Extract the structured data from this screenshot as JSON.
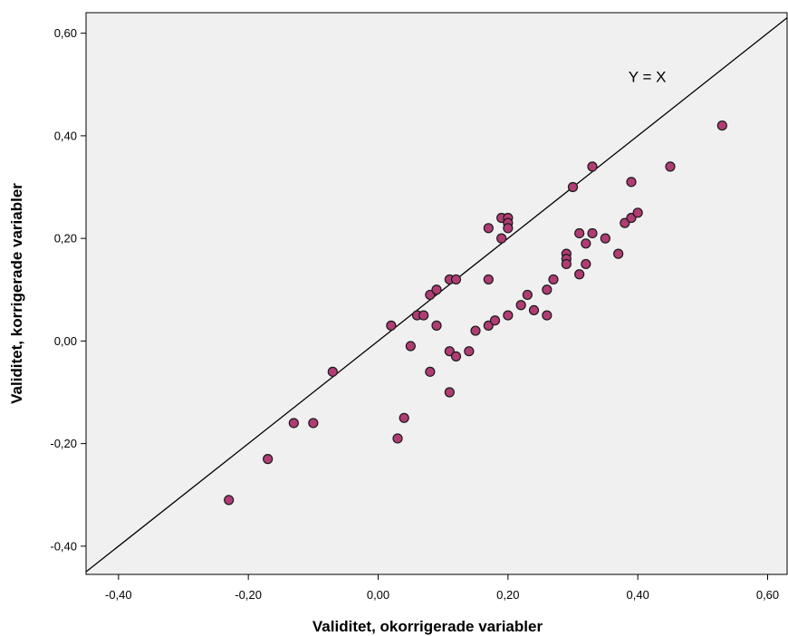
{
  "chart_data": {
    "type": "scatter",
    "title": "",
    "xlabel": "Validitet, okorrigerade variabler",
    "ylabel": "Validitet, korrigerade variabler",
    "xlim": [
      -0.45,
      0.63
    ],
    "ylim": [
      -0.455,
      0.64
    ],
    "xticks": [
      -0.4,
      -0.2,
      0.0,
      0.2,
      0.4,
      0.6
    ],
    "xtick_labels": [
      "-0,40",
      "-0,20",
      "0,00",
      "0,20",
      "0,40",
      "0,60"
    ],
    "yticks": [
      -0.4,
      -0.2,
      0.0,
      0.2,
      0.4,
      0.6
    ],
    "ytick_labels": [
      "-0,40",
      "-0,20",
      "0,00",
      "0,20",
      "0,40",
      "0,60"
    ],
    "grid": false,
    "reference_line": {
      "label": "Y = X",
      "slope": 1,
      "intercept": 0
    },
    "colors": {
      "plot_bg": "#f0f0f0",
      "point_fill": "#b03c74",
      "point_stroke": "#1a1a1a",
      "line": "#000000"
    },
    "points": [
      {
        "x": -0.23,
        "y": -0.31
      },
      {
        "x": -0.17,
        "y": -0.23
      },
      {
        "x": -0.13,
        "y": -0.16
      },
      {
        "x": -0.1,
        "y": -0.16
      },
      {
        "x": -0.07,
        "y": -0.06
      },
      {
        "x": 0.02,
        "y": 0.03
      },
      {
        "x": 0.03,
        "y": -0.19
      },
      {
        "x": 0.04,
        "y": -0.15
      },
      {
        "x": 0.05,
        "y": -0.01
      },
      {
        "x": 0.06,
        "y": 0.05
      },
      {
        "x": 0.07,
        "y": 0.05
      },
      {
        "x": 0.08,
        "y": 0.09
      },
      {
        "x": 0.08,
        "y": -0.06
      },
      {
        "x": 0.09,
        "y": 0.1
      },
      {
        "x": 0.09,
        "y": 0.03
      },
      {
        "x": 0.11,
        "y": 0.12
      },
      {
        "x": 0.11,
        "y": -0.02
      },
      {
        "x": 0.11,
        "y": -0.1
      },
      {
        "x": 0.12,
        "y": 0.12
      },
      {
        "x": 0.12,
        "y": -0.03
      },
      {
        "x": 0.14,
        "y": -0.02
      },
      {
        "x": 0.15,
        "y": 0.02
      },
      {
        "x": 0.17,
        "y": 0.22
      },
      {
        "x": 0.17,
        "y": 0.12
      },
      {
        "x": 0.17,
        "y": 0.03
      },
      {
        "x": 0.18,
        "y": 0.04
      },
      {
        "x": 0.19,
        "y": 0.24
      },
      {
        "x": 0.19,
        "y": 0.2
      },
      {
        "x": 0.2,
        "y": 0.24
      },
      {
        "x": 0.2,
        "y": 0.23
      },
      {
        "x": 0.2,
        "y": 0.22
      },
      {
        "x": 0.2,
        "y": 0.05
      },
      {
        "x": 0.22,
        "y": 0.07
      },
      {
        "x": 0.23,
        "y": 0.09
      },
      {
        "x": 0.24,
        "y": 0.06
      },
      {
        "x": 0.26,
        "y": 0.1
      },
      {
        "x": 0.26,
        "y": 0.05
      },
      {
        "x": 0.27,
        "y": 0.12
      },
      {
        "x": 0.29,
        "y": 0.17
      },
      {
        "x": 0.29,
        "y": 0.16
      },
      {
        "x": 0.29,
        "y": 0.15
      },
      {
        "x": 0.3,
        "y": 0.3
      },
      {
        "x": 0.31,
        "y": 0.21
      },
      {
        "x": 0.31,
        "y": 0.13
      },
      {
        "x": 0.32,
        "y": 0.19
      },
      {
        "x": 0.32,
        "y": 0.15
      },
      {
        "x": 0.33,
        "y": 0.34
      },
      {
        "x": 0.33,
        "y": 0.21
      },
      {
        "x": 0.35,
        "y": 0.2
      },
      {
        "x": 0.37,
        "y": 0.17
      },
      {
        "x": 0.38,
        "y": 0.23
      },
      {
        "x": 0.39,
        "y": 0.31
      },
      {
        "x": 0.39,
        "y": 0.24
      },
      {
        "x": 0.4,
        "y": 0.25
      },
      {
        "x": 0.45,
        "y": 0.34
      },
      {
        "x": 0.53,
        "y": 0.42
      }
    ]
  }
}
